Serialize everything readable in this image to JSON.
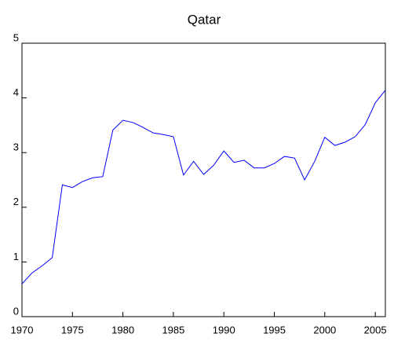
{
  "chart_data": {
    "type": "line",
    "title": "Qatar",
    "x": [
      1970,
      1971,
      1972,
      1973,
      1974,
      1975,
      1976,
      1977,
      1978,
      1979,
      1980,
      1981,
      1982,
      1983,
      1984,
      1985,
      1986,
      1987,
      1988,
      1989,
      1990,
      1991,
      1992,
      1993,
      1994,
      1995,
      1996,
      1997,
      1998,
      1999,
      2000,
      2001,
      2002,
      2003,
      2004,
      2005,
      2006
    ],
    "series": [
      {
        "name": "Qatar",
        "color": "#0000ff",
        "values": [
          0.6,
          0.8,
          0.93,
          1.08,
          2.41,
          2.36,
          2.47,
          2.54,
          2.56,
          3.41,
          3.59,
          3.55,
          3.46,
          3.36,
          3.33,
          3.29,
          2.59,
          2.84,
          2.6,
          2.77,
          3.03,
          2.82,
          2.86,
          2.72,
          2.72,
          2.8,
          2.93,
          2.9,
          2.5,
          2.84,
          3.28,
          3.13,
          3.19,
          3.29,
          3.51,
          3.91,
          4.14
        ]
      }
    ],
    "xlim": [
      1970,
      2006
    ],
    "xticks": [
      1970,
      1975,
      1980,
      1985,
      1990,
      1995,
      2000,
      2005
    ],
    "ylim": [
      0,
      5
    ],
    "yticks": [
      0,
      1,
      2,
      3,
      4,
      5
    ],
    "grid": false
  }
}
